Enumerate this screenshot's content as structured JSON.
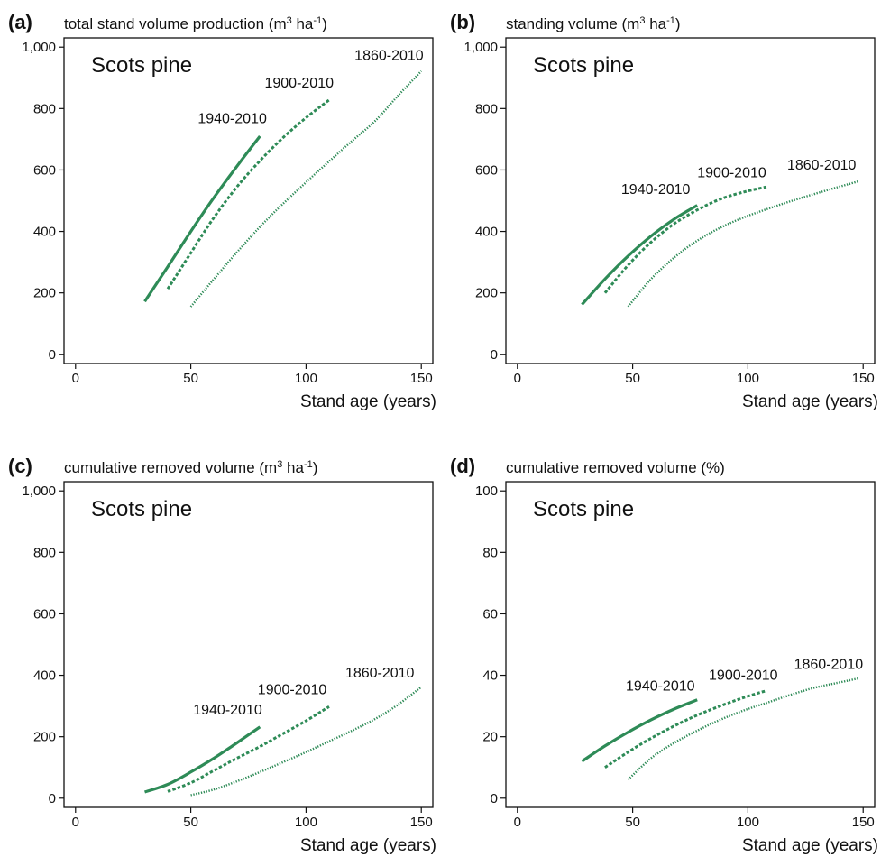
{
  "series_color": "#2e8b57",
  "chart_data": [
    {
      "type": "line",
      "letter": "(a)",
      "title": {
        "main": "total stand volume production (m",
        "sup1": "3",
        "mid": " ha",
        "sup2": "-1",
        "end": ")"
      },
      "species": "Scots pine",
      "xlabel": "Stand age (years)",
      "xlim": [
        -5,
        155
      ],
      "ylim": [
        -30,
        1030
      ],
      "xticks": [
        0,
        50,
        100,
        150
      ],
      "yticks": [
        0,
        200,
        400,
        600,
        800,
        1000
      ],
      "ytick_labels": [
        "0",
        "200",
        "400",
        "600",
        "800",
        "1,000"
      ],
      "series": [
        {
          "name": "1940-2010",
          "style": "solid",
          "x": [
            30,
            40,
            50,
            60,
            70,
            80
          ],
          "y": [
            172,
            285,
            400,
            510,
            612,
            710
          ],
          "label_at": [
            68,
            752
          ]
        },
        {
          "name": "1900-2010",
          "style": "dashed",
          "x": [
            40,
            50,
            60,
            70,
            80,
            90,
            100,
            110
          ],
          "y": [
            213,
            330,
            445,
            545,
            630,
            705,
            770,
            828
          ],
          "label_at": [
            97,
            868
          ]
        },
        {
          "name": "1860-2010",
          "style": "dotted",
          "x": [
            50,
            60,
            70,
            80,
            90,
            100,
            110,
            120,
            130,
            140,
            150
          ],
          "y": [
            155,
            245,
            332,
            415,
            490,
            560,
            628,
            695,
            760,
            843,
            922
          ],
          "label_at": [
            136,
            958
          ]
        }
      ]
    },
    {
      "type": "line",
      "letter": "(b)",
      "title": {
        "main": "standing volume (m",
        "sup1": "3",
        "mid": " ha",
        "sup2": "-1",
        "end": ")"
      },
      "species": "Scots pine",
      "xlabel": "Stand age (years)",
      "xlim": [
        -5,
        155
      ],
      "ylim": [
        -30,
        1030
      ],
      "xticks": [
        0,
        50,
        100,
        150
      ],
      "yticks": [
        0,
        200,
        400,
        600,
        800,
        1000
      ],
      "ytick_labels": [
        "0",
        "200",
        "400",
        "600",
        "800",
        "1,000"
      ],
      "series": [
        {
          "name": "1940-2010",
          "style": "solid",
          "x": [
            28,
            38,
            48,
            58,
            68,
            78
          ],
          "y": [
            162,
            245,
            320,
            385,
            440,
            485
          ],
          "label_at": [
            60,
            522
          ]
        },
        {
          "name": "1900-2010",
          "style": "dashed",
          "x": [
            38,
            48,
            58,
            68,
            78,
            88,
            98,
            108
          ],
          "y": [
            200,
            290,
            365,
            425,
            470,
            505,
            528,
            545
          ],
          "label_at": [
            93,
            577
          ]
        },
        {
          "name": "1860-2010",
          "style": "dotted",
          "x": [
            48,
            58,
            68,
            78,
            88,
            98,
            108,
            118,
            128,
            138,
            148
          ],
          "y": [
            155,
            245,
            315,
            370,
            412,
            445,
            472,
            497,
            520,
            542,
            563
          ],
          "label_at": [
            132,
            602
          ]
        }
      ]
    },
    {
      "type": "line",
      "letter": "(c)",
      "title": {
        "main": "cumulative removed volume (m",
        "sup1": "3",
        "mid": " ha",
        "sup2": "-1",
        "end": ")"
      },
      "species": "Scots pine",
      "xlabel": "Stand age (years)",
      "xlim": [
        -5,
        155
      ],
      "ylim": [
        -30,
        1030
      ],
      "xticks": [
        0,
        50,
        100,
        150
      ],
      "yticks": [
        0,
        200,
        400,
        600,
        800,
        1000
      ],
      "ytick_labels": [
        "0",
        "200",
        "400",
        "600",
        "800",
        "1,000"
      ],
      "series": [
        {
          "name": "1940-2010",
          "style": "solid",
          "x": [
            30,
            40,
            50,
            60,
            70,
            80
          ],
          "y": [
            20,
            45,
            85,
            130,
            180,
            232
          ],
          "label_at": [
            66,
            272
          ]
        },
        {
          "name": "1900-2010",
          "style": "dashed",
          "x": [
            40,
            50,
            60,
            70,
            80,
            90,
            100,
            110
          ],
          "y": [
            22,
            50,
            90,
            130,
            168,
            210,
            252,
            298
          ],
          "label_at": [
            94,
            338
          ]
        },
        {
          "name": "1860-2010",
          "style": "dotted",
          "x": [
            50,
            60,
            70,
            80,
            90,
            100,
            110,
            120,
            130,
            140,
            150
          ],
          "y": [
            10,
            28,
            55,
            85,
            117,
            150,
            185,
            220,
            258,
            305,
            362
          ],
          "label_at": [
            132,
            393
          ]
        }
      ]
    },
    {
      "type": "line",
      "letter": "(d)",
      "title": {
        "main": "cumulative removed volume (%)",
        "sup1": "",
        "mid": "",
        "sup2": "",
        "end": ""
      },
      "species": "Scots pine",
      "xlabel": "Stand age (years)",
      "xlim": [
        -5,
        155
      ],
      "ylim": [
        -3,
        103
      ],
      "xticks": [
        0,
        50,
        100,
        150
      ],
      "yticks": [
        0,
        20,
        40,
        60,
        80,
        100
      ],
      "ytick_labels": [
        "0",
        "20",
        "40",
        "60",
        "80",
        "100"
      ],
      "series": [
        {
          "name": "1940-2010",
          "style": "solid",
          "x": [
            28,
            38,
            48,
            58,
            68,
            78
          ],
          "y": [
            12,
            17,
            21.5,
            25.5,
            29,
            32
          ],
          "label_at": [
            62,
            35
          ]
        },
        {
          "name": "1900-2010",
          "style": "dashed",
          "x": [
            38,
            48,
            58,
            68,
            78,
            88,
            98,
            108
          ],
          "y": [
            10,
            15,
            19.5,
            23.5,
            27,
            30,
            32.7,
            35
          ],
          "label_at": [
            98,
            38.5
          ]
        },
        {
          "name": "1860-2010",
          "style": "dotted",
          "x": [
            48,
            58,
            68,
            78,
            88,
            98,
            108,
            118,
            128,
            138,
            148
          ],
          "y": [
            6,
            13,
            18,
            22,
            25.5,
            28.5,
            31,
            33.5,
            35.8,
            37.4,
            39
          ],
          "label_at": [
            135,
            42
          ]
        }
      ]
    }
  ]
}
